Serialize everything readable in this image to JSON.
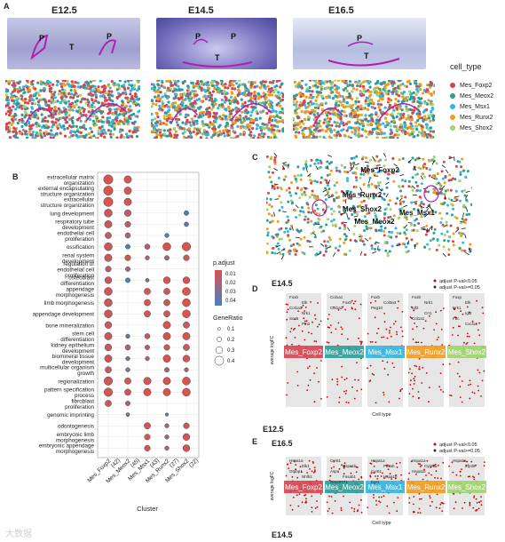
{
  "panelA": {
    "letter": "A",
    "stages": [
      "E12.5",
      "E14.5",
      "E16.5"
    ],
    "he_labels": [
      [
        "P",
        "T",
        "P"
      ],
      [
        "P",
        "P",
        "T"
      ],
      [
        "P",
        "T"
      ]
    ],
    "legend_title": "cell_type",
    "cell_types": [
      {
        "name": "Mes_Foxp2",
        "color": "#d9434e"
      },
      {
        "name": "Mes_Meox2",
        "color": "#2a9d9a"
      },
      {
        "name": "Mes_Msx1",
        "color": "#33b6e0"
      },
      {
        "name": "Mes_Runx2",
        "color": "#f29a1b"
      },
      {
        "name": "Mes_Shox2",
        "color": "#9fd46b"
      }
    ]
  },
  "panelB": {
    "letter": "B",
    "terms": [
      "extracellular matrix organization",
      "external encapsulating structure organization",
      "extracellular structure organization",
      "lung development",
      "respiratory tube development",
      "endothelial cell proliferation",
      "ossification",
      "renal system development",
      "regulation of endothelial cell proliferation",
      "osteoblast differentiation",
      "appendage morphogenesis",
      "limb morphogenesis",
      "appendage development",
      "bone mineralization",
      "stem cell differentiation",
      "kidney epithelium development",
      "biomineral tissue development",
      "multicellular organism growth",
      "regionalization",
      "pattern specification process",
      "fibroblast proliferation",
      "genomic imprinting",
      "odontogenesis",
      "embryonic limb morphogenesis",
      "embryonic appendage morphogenesis"
    ],
    "clusters": [
      "Mes_Foxp2\n(42)",
      "Mes_Meox2\n(45)",
      "Mes_Msx1\n(43)",
      "Mes_Runx2\n(27)",
      "Mes_Shox2\n(22)"
    ],
    "cluster_labels": [
      "Mes_Foxp2",
      "(42)",
      "Mes_Meox2",
      "(45)",
      "Mes_Msx1",
      "(43)",
      "Mes_Runx2",
      "(27)",
      "Mes_Shox2",
      "(22)"
    ],
    "xlabel": "Cluster",
    "padj_title": "p.adjust",
    "padj_ticks": [
      "0.01",
      "0.02",
      "0.03",
      "0.04"
    ],
    "generatio_title": "GeneRatio",
    "generatio_ticks": [
      "0.1",
      "0.2",
      "0.3",
      "0.4"
    ],
    "dots": [
      [
        0,
        0,
        0.35,
        0.005
      ],
      [
        1,
        0,
        0.28,
        0.008
      ],
      [
        0,
        1,
        0.35,
        0.005
      ],
      [
        1,
        1,
        0.28,
        0.008
      ],
      [
        0,
        2,
        0.35,
        0.005
      ],
      [
        1,
        2,
        0.28,
        0.008
      ],
      [
        0,
        3,
        0.3,
        0.01
      ],
      [
        1,
        3,
        0.25,
        0.012
      ],
      [
        4,
        3,
        0.18,
        0.04
      ],
      [
        0,
        4,
        0.28,
        0.01
      ],
      [
        1,
        4,
        0.22,
        0.015
      ],
      [
        4,
        4,
        0.17,
        0.04
      ],
      [
        0,
        5,
        0.24,
        0.015
      ],
      [
        1,
        5,
        0.2,
        0.02
      ],
      [
        3,
        5,
        0.16,
        0.04
      ],
      [
        0,
        6,
        0.3,
        0.01
      ],
      [
        1,
        6,
        0.18,
        0.045
      ],
      [
        2,
        6,
        0.2,
        0.012
      ],
      [
        3,
        6,
        0.3,
        0.005
      ],
      [
        4,
        6,
        0.32,
        0.005
      ],
      [
        0,
        7,
        0.28,
        0.01
      ],
      [
        1,
        7,
        0.22,
        0.01
      ],
      [
        2,
        7,
        0.16,
        0.02
      ],
      [
        3,
        7,
        0.18,
        0.02
      ],
      [
        4,
        7,
        0.22,
        0.01
      ],
      [
        0,
        8,
        0.22,
        0.015
      ],
      [
        1,
        8,
        0.18,
        0.02
      ],
      [
        0,
        9,
        0.26,
        0.012
      ],
      [
        1,
        9,
        0.18,
        0.045
      ],
      [
        2,
        9,
        0.14,
        0.03
      ],
      [
        3,
        9,
        0.26,
        0.006
      ],
      [
        4,
        9,
        0.26,
        0.006
      ],
      [
        0,
        10,
        0.3,
        0.01
      ],
      [
        2,
        10,
        0.24,
        0.008
      ],
      [
        3,
        10,
        0.24,
        0.01
      ],
      [
        4,
        10,
        0.3,
        0.005
      ],
      [
        0,
        11,
        0.3,
        0.01
      ],
      [
        2,
        11,
        0.24,
        0.008
      ],
      [
        3,
        11,
        0.24,
        0.01
      ],
      [
        4,
        11,
        0.3,
        0.005
      ],
      [
        0,
        12,
        0.3,
        0.01
      ],
      [
        2,
        12,
        0.24,
        0.008
      ],
      [
        3,
        12,
        0.24,
        0.01
      ],
      [
        4,
        12,
        0.3,
        0.005
      ],
      [
        0,
        13,
        0.26,
        0.012
      ],
      [
        3,
        13,
        0.28,
        0.005
      ],
      [
        4,
        13,
        0.24,
        0.01
      ],
      [
        0,
        14,
        0.28,
        0.01
      ],
      [
        1,
        14,
        0.16,
        0.04
      ],
      [
        2,
        14,
        0.2,
        0.012
      ],
      [
        3,
        14,
        0.28,
        0.006
      ],
      [
        4,
        14,
        0.28,
        0.006
      ],
      [
        0,
        15,
        0.26,
        0.012
      ],
      [
        1,
        15,
        0.2,
        0.02
      ],
      [
        2,
        15,
        0.18,
        0.015
      ],
      [
        3,
        15,
        0.22,
        0.01
      ],
      [
        4,
        15,
        0.24,
        0.01
      ],
      [
        0,
        16,
        0.28,
        0.01
      ],
      [
        1,
        16,
        0.16,
        0.03
      ],
      [
        2,
        16,
        0.16,
        0.02
      ],
      [
        3,
        16,
        0.28,
        0.005
      ],
      [
        4,
        16,
        0.26,
        0.008
      ],
      [
        0,
        17,
        0.24,
        0.012
      ],
      [
        1,
        17,
        0.16,
        0.03
      ],
      [
        3,
        17,
        0.18,
        0.02
      ],
      [
        4,
        17,
        0.16,
        0.02
      ],
      [
        0,
        18,
        0.32,
        0.008
      ],
      [
        1,
        18,
        0.24,
        0.01
      ],
      [
        2,
        18,
        0.28,
        0.005
      ],
      [
        3,
        18,
        0.28,
        0.006
      ],
      [
        4,
        18,
        0.3,
        0.005
      ],
      [
        0,
        19,
        0.32,
        0.008
      ],
      [
        1,
        19,
        0.24,
        0.01
      ],
      [
        2,
        19,
        0.28,
        0.005
      ],
      [
        3,
        19,
        0.28,
        0.006
      ],
      [
        4,
        19,
        0.3,
        0.005
      ],
      [
        0,
        20,
        0.24,
        0.012
      ],
      [
        1,
        20,
        0.18,
        0.02
      ],
      [
        1,
        21,
        0.14,
        0.03
      ],
      [
        3,
        21,
        0.12,
        0.045
      ],
      [
        2,
        22,
        0.24,
        0.008
      ],
      [
        3,
        22,
        0.16,
        0.02
      ],
      [
        4,
        22,
        0.22,
        0.01
      ],
      [
        2,
        23,
        0.22,
        0.008
      ],
      [
        3,
        23,
        0.16,
        0.02
      ],
      [
        4,
        23,
        0.26,
        0.006
      ],
      [
        2,
        24,
        0.22,
        0.008
      ],
      [
        3,
        24,
        0.16,
        0.02
      ],
      [
        4,
        24,
        0.26,
        0.006
      ]
    ]
  },
  "panelC": {
    "letter": "C",
    "labels": [
      "Mes_Foxp2",
      "Mes_Runx2",
      "Mes_Shox2",
      "Mes_Meox2",
      "Mes_Msx1"
    ]
  },
  "panelD": {
    "letter": "D",
    "stage": "E14.5",
    "legend": [
      "adjust P-val<0.05",
      "adjust P-val>=0.05"
    ],
    "ylabel": "average logFC",
    "xlabel": "Cell type",
    "clusters": [
      "Mes_Foxp2",
      "Mes_Meox2",
      "Mes_Msx1",
      "Mes_Runx2",
      "Mes_Shox2"
    ],
    "genes": [
      [
        "Foxb",
        "Elk",
        "Col1a1",
        "Nrk1",
        "Sox6",
        "Ptn2"
      ],
      [
        "Col1a1",
        "Foxb",
        "Col1a2"
      ],
      [
        "Foxb",
        "Col3a3",
        "Peg10"
      ],
      [
        "Foxb",
        "Nrk1",
        "Igf2",
        "Crr1",
        "Col1a1"
      ],
      [
        "Foxp",
        "Elk",
        "Nrk1",
        "Igf2",
        "Fbc",
        "Cxcl14"
      ]
    ],
    "below_label": "Peg10",
    "bottom_label": "Cxcl14"
  },
  "panelE": {
    "letter": "E",
    "stage_top": "E12.5",
    "stage": "E16.5",
    "legend": [
      "adjust P-val<0.05",
      "adjust P-val>=0.05"
    ],
    "ylabel": "average logFC",
    "xlabel": "Cell type",
    "clusters": [
      "Mes_Foxp2",
      "Mes_Meox2",
      "Mes_Msx1",
      "Mes_Runx2",
      "Mes_Shox2"
    ],
    "genes": [
      [
        "Hspa1a",
        "Elk1",
        "Gtpbp1",
        "Nhlh2"
      ],
      [
        "Cyr61",
        "Hspa1b",
        "Aspa",
        "Fosab1",
        "Gm20771"
      ],
      [
        "Hspa1a",
        "Fosab",
        "Cyr61",
        "Hspa1b",
        "Egr1"
      ],
      [
        "Hspa1a",
        "Cyr61",
        "Hspa1b"
      ],
      [
        "Hspa1a",
        "Zfp36"
      ]
    ],
    "footer_stage": "E14.5"
  },
  "watermark": "大数据"
}
